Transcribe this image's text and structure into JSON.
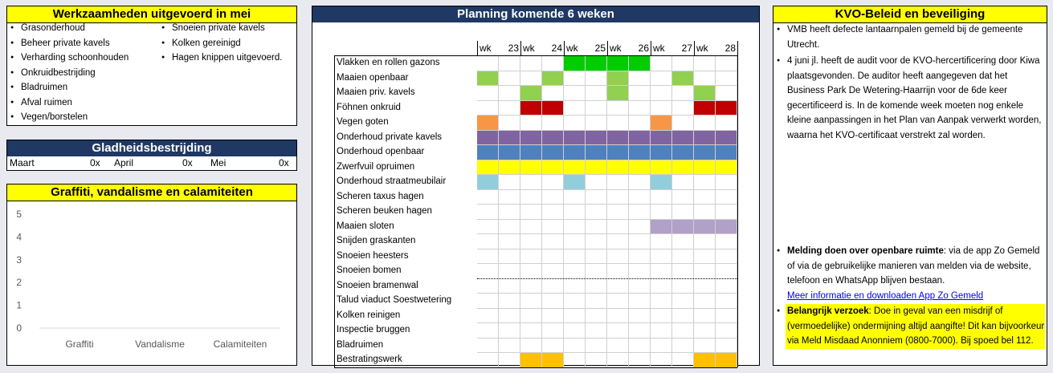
{
  "werkzaamheden": {
    "title": "Werkzaamheden uitgevoerd in mei",
    "col1": [
      "Grasonderhoud",
      "Beheer private kavels",
      "Verharding schoonhouden",
      "Onkruidbestrijding",
      "Bladruimen",
      "Afval ruimen",
      "Vegen/borstelen"
    ],
    "col2": [
      "Snoeien private kavels",
      "Kolken gereinigd",
      "Hagen knippen uitgevoerd."
    ]
  },
  "gladheid": {
    "title": "Gladheidsbestrijding",
    "months": [
      {
        "name": "Maart",
        "value": "0x"
      },
      {
        "name": "April",
        "value": "0x"
      },
      {
        "name": "Mei",
        "value": "0x"
      }
    ]
  },
  "graffiti": {
    "title": "Graffiti, vandalisme en calamiteiten"
  },
  "chart_data": {
    "type": "bar",
    "categories": [
      "Graffiti",
      "Vandalisme",
      "Calamiteiten"
    ],
    "values": [
      0,
      0,
      0
    ],
    "ylim": [
      0,
      5
    ],
    "yticks": [
      "0",
      "1",
      "2",
      "3",
      "4",
      "5"
    ],
    "grid": false
  },
  "planning": {
    "title": "Planning komende 6 weken",
    "weeks": [
      {
        "label": "wk",
        "num": "23"
      },
      {
        "label": "wk",
        "num": "24"
      },
      {
        "label": "wk",
        "num": "25"
      },
      {
        "label": "wk",
        "num": "26"
      },
      {
        "label": "wk",
        "num": "27"
      },
      {
        "label": "wk",
        "num": "28"
      }
    ],
    "tasks": [
      {
        "name": "Vlakken en rollen gazons",
        "color": "#00cc00",
        "halves": [
          0,
          0,
          0,
          0,
          1,
          1,
          1,
          1,
          0,
          0,
          0,
          0
        ]
      },
      {
        "name": "Maaien openbaar",
        "color": "#92d050",
        "halves": [
          1,
          0,
          0,
          1,
          0,
          0,
          1,
          0,
          0,
          1,
          0,
          0
        ]
      },
      {
        "name": "Maaien priv. kavels",
        "color": "#92d050",
        "halves": [
          0,
          0,
          1,
          0,
          0,
          0,
          1,
          0,
          0,
          0,
          1,
          0
        ]
      },
      {
        "name": "Föhnen onkruid",
        "color": "#c00000",
        "halves": [
          0,
          0,
          1,
          1,
          0,
          0,
          0,
          0,
          0,
          0,
          1,
          1
        ]
      },
      {
        "name": "Vegen goten",
        "color": "#f79646",
        "halves": [
          1,
          0,
          0,
          0,
          0,
          0,
          0,
          0,
          1,
          0,
          0,
          0
        ]
      },
      {
        "name": "Onderhoud private kavels",
        "color": "#8064a2",
        "halves": [
          1,
          1,
          1,
          1,
          1,
          1,
          1,
          1,
          1,
          1,
          1,
          1
        ]
      },
      {
        "name": "Onderhoud openbaar",
        "color": "#4f81bd",
        "halves": [
          1,
          1,
          1,
          1,
          1,
          1,
          1,
          1,
          1,
          1,
          1,
          1
        ]
      },
      {
        "name": "Zwerfvuil opruimen",
        "color": "#ffff00",
        "halves": [
          1,
          1,
          1,
          1,
          1,
          1,
          1,
          1,
          1,
          1,
          1,
          1
        ]
      },
      {
        "name": "Onderhoud straatmeubilair",
        "color": "#92cddc",
        "halves": [
          1,
          0,
          0,
          0,
          1,
          0,
          0,
          0,
          1,
          0,
          0,
          0
        ]
      },
      {
        "name": "Scheren taxus hagen",
        "color": "#ffffff",
        "halves": [
          0,
          0,
          0,
          0,
          0,
          0,
          0,
          0,
          0,
          0,
          0,
          0
        ]
      },
      {
        "name": "Scheren beuken hagen",
        "color": "#ffffff",
        "halves": [
          0,
          0,
          0,
          0,
          0,
          0,
          0,
          0,
          0,
          0,
          0,
          0
        ]
      },
      {
        "name": "Maaien sloten",
        "color": "#b1a0c7",
        "halves": [
          0,
          0,
          0,
          0,
          0,
          0,
          0,
          0,
          1,
          1,
          1,
          1
        ]
      },
      {
        "name": "Snijden graskanten",
        "color": "#ffffff",
        "halves": [
          0,
          0,
          0,
          0,
          0,
          0,
          0,
          0,
          0,
          0,
          0,
          0
        ]
      },
      {
        "name": "Snoeien heesters",
        "color": "#ffffff",
        "halves": [
          0,
          0,
          0,
          0,
          0,
          0,
          0,
          0,
          0,
          0,
          0,
          0
        ]
      },
      {
        "name": "Snoeien bomen",
        "color": "#ffffff",
        "halves": [
          0,
          0,
          0,
          0,
          0,
          0,
          0,
          0,
          0,
          0,
          0,
          0
        ]
      },
      {
        "name": "Snoeien bramenwal",
        "color": "#ffffff",
        "halves": [
          0,
          0,
          0,
          0,
          0,
          0,
          0,
          0,
          0,
          0,
          0,
          0
        ]
      },
      {
        "name": "Talud viaduct Soestwetering",
        "color": "#ffffff",
        "halves": [
          0,
          0,
          0,
          0,
          0,
          0,
          0,
          0,
          0,
          0,
          0,
          0
        ]
      },
      {
        "name": "Kolken reinigen",
        "color": "#ffffff",
        "halves": [
          0,
          0,
          0,
          0,
          0,
          0,
          0,
          0,
          0,
          0,
          0,
          0
        ]
      },
      {
        "name": "Inspectie bruggen",
        "color": "#ffffff",
        "halves": [
          0,
          0,
          0,
          0,
          0,
          0,
          0,
          0,
          0,
          0,
          0,
          0
        ]
      },
      {
        "name": "Bladruimen",
        "color": "#ffffff",
        "halves": [
          0,
          0,
          0,
          0,
          0,
          0,
          0,
          0,
          0,
          0,
          0,
          0
        ]
      },
      {
        "name": "Bestratingswerk",
        "color": "#ffc000",
        "halves": [
          0,
          0,
          1,
          1,
          0,
          0,
          0,
          0,
          0,
          0,
          1,
          1
        ]
      }
    ]
  },
  "kvo": {
    "title": "KVO-Beleid en beveiliging",
    "item1": "VMB heeft defecte lantaarnpalen gemeld bij de gemeente Utrecht.",
    "item2": "4 juni jl. heeft de audit voor de KVO-hercertificering door Kiwa plaatsgevonden. De auditor heeft aangegeven dat het Business Park De Wetering-Haarrijn voor de 6de keer gecertificeerd is. In de komende week moeten nog enkele kleine aanpassingen in het Plan van Aanpak verwerkt worden, waarna het KVO-certificaat verstrekt zal worden.",
    "melding_bold": "Melding doen over openbare ruimte",
    "melding_text": ": via de app Zo Gemeld of via de gebruikelijke manieren van melden via de website, telefoon en WhatsApp blijven bestaan.",
    "melding_link": "Meer informatie en downloaden App Zo Gemeld",
    "verzoek_bold": "Belangrijk verzoek",
    "verzoek_text": ": Doe in geval van een misdrijf of (vermoedelijke) ondermijning altijd aangifte! Dit kan bijvoorkeur via Meld Misdaad Anonniem (0800-7000). Bij spoed bel 112.",
    "verzoek_bg": "#ffff00"
  }
}
